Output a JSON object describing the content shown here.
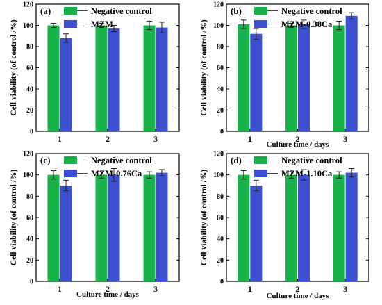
{
  "colors": {
    "negative": "#18b14a",
    "sample": "#3b4fcf",
    "axis": "#000000"
  },
  "chart_data": [
    {
      "type": "bar",
      "panel_label": "(a)",
      "xlabel": "",
      "ylabel": "Cell viability (of control /%)",
      "ylim": [
        0,
        120
      ],
      "yticks": [
        "0",
        "20",
        "40",
        "60",
        "80",
        "100",
        "120"
      ],
      "categories": [
        "1",
        "2",
        "3"
      ],
      "series": [
        {
          "name": "Negative control",
          "values": [
            100,
            100,
            100
          ],
          "errors": [
            2,
            2,
            4
          ]
        },
        {
          "name": "MZM",
          "values": [
            88,
            97,
            98
          ],
          "errors": [
            4,
            3,
            5
          ]
        }
      ]
    },
    {
      "type": "bar",
      "panel_label": "(b)",
      "xlabel": "Culture time / days",
      "ylabel": "Cell viability (of control /%)",
      "ylim": [
        0,
        120
      ],
      "yticks": [
        "0",
        "20",
        "40",
        "60",
        "80",
        "100",
        "120"
      ],
      "categories": [
        "1",
        "2",
        "3"
      ],
      "series": [
        {
          "name": "Negative control",
          "values": [
            101,
            100,
            100
          ],
          "errors": [
            4,
            2,
            4
          ]
        },
        {
          "name": "MZM-0.38Ca",
          "values": [
            92,
            101,
            109
          ],
          "errors": [
            5,
            4,
            3
          ]
        }
      ]
    },
    {
      "type": "bar",
      "panel_label": "(c)",
      "xlabel": "Culture time / days",
      "ylabel": "Cell viability (of control /%)",
      "ylim": [
        0,
        120
      ],
      "yticks": [
        "0",
        "20",
        "40",
        "60",
        "80",
        "100",
        "120"
      ],
      "categories": [
        "1",
        "2",
        "3"
      ],
      "series": [
        {
          "name": "Negative control",
          "values": [
            100,
            100,
            100
          ],
          "errors": [
            4,
            3,
            3
          ]
        },
        {
          "name": "MZM-0.76Ca",
          "values": [
            90,
            100,
            102
          ],
          "errors": [
            5,
            6,
            3
          ]
        }
      ]
    },
    {
      "type": "bar",
      "panel_label": "(d)",
      "xlabel": "Culture time / days",
      "ylabel": "Cell viability (of control /%)",
      "ylim": [
        0,
        120
      ],
      "yticks": [
        "0",
        "20",
        "40",
        "60",
        "80",
        "100",
        "120"
      ],
      "categories": [
        "1",
        "2",
        "3"
      ],
      "series": [
        {
          "name": "Negative control",
          "values": [
            100,
            100,
            100
          ],
          "errors": [
            4,
            3,
            3
          ]
        },
        {
          "name": "MZM-1.10Ca",
          "values": [
            90,
            100,
            102
          ],
          "errors": [
            5,
            5,
            4
          ]
        }
      ]
    }
  ]
}
